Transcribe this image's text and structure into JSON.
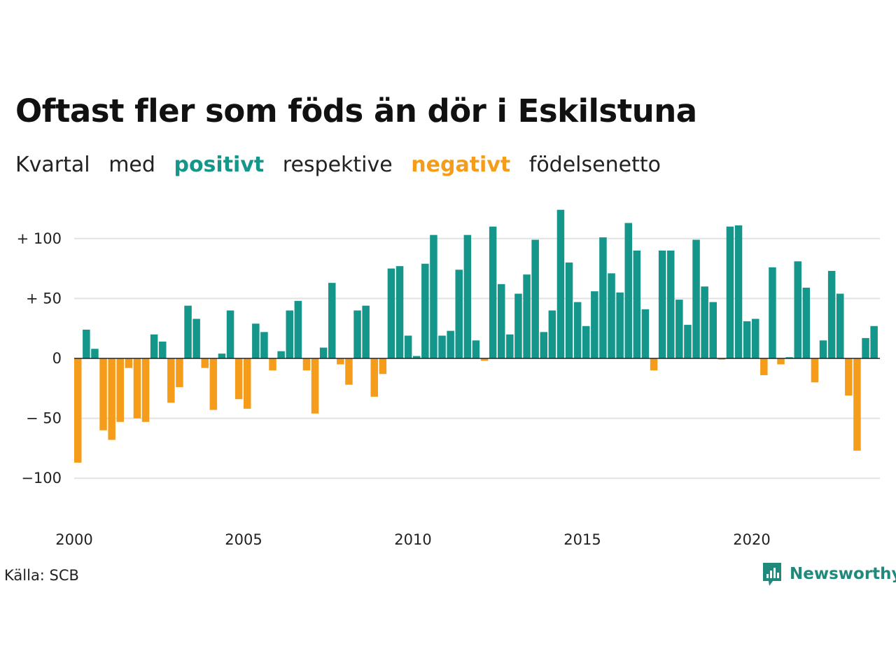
{
  "header": {
    "title": "Oftast fler som föds än dör i Eskilstuna",
    "subtitle": {
      "part1": "Kvartal",
      "part2": "med",
      "positive": "positivt",
      "part3": "respektive",
      "negative": "negativt",
      "part4": "födelsenetto"
    }
  },
  "colors": {
    "positive": "#15968a",
    "negative": "#f59d1a",
    "grid": "#e2e2e2",
    "zero": "#222222"
  },
  "chart_data": {
    "type": "bar",
    "x_start_year": 2000,
    "periods_per_year": 4,
    "ylim": [
      -110,
      125
    ],
    "y_ticks": [
      {
        "value": 100,
        "label": "+ 100"
      },
      {
        "value": 50,
        "label": "+  50"
      },
      {
        "value": 0,
        "label": "0"
      },
      {
        "value": -50,
        "label": "− 50"
      },
      {
        "value": -100,
        "label": "−100"
      }
    ],
    "x_ticks": [
      {
        "value": 2000,
        "label": "2000"
      },
      {
        "value": 2005,
        "label": "2005"
      },
      {
        "value": 2010,
        "label": "2010"
      },
      {
        "value": 2015,
        "label": "2015"
      },
      {
        "value": 2020,
        "label": "2020"
      }
    ],
    "values": [
      -87,
      24,
      8,
      -60,
      -68,
      -53,
      -8,
      -50,
      -53,
      20,
      14,
      -37,
      -24,
      44,
      33,
      -8,
      -43,
      4,
      40,
      -34,
      -42,
      29,
      22,
      -10,
      6,
      40,
      48,
      -10,
      -46,
      9,
      63,
      -5,
      -22,
      40,
      44,
      -32,
      -13,
      75,
      77,
      19,
      2,
      79,
      103,
      19,
      23,
      74,
      103,
      15,
      -2,
      110,
      62,
      20,
      54,
      70,
      99,
      22,
      40,
      124,
      80,
      47,
      27,
      56,
      101,
      71,
      55,
      113,
      90,
      41,
      -10,
      90,
      90,
      49,
      28,
      99,
      60,
      47,
      -1,
      110,
      111,
      31,
      33,
      -14,
      76,
      -5,
      1,
      81,
      59,
      -20,
      15,
      73,
      54,
      -31,
      -77,
      17,
      27
    ]
  },
  "footer": {
    "source": "Källa: SCB",
    "brand": "Newsworthy",
    "brand_icon": "bar-chart-speech-bubble-icon"
  }
}
